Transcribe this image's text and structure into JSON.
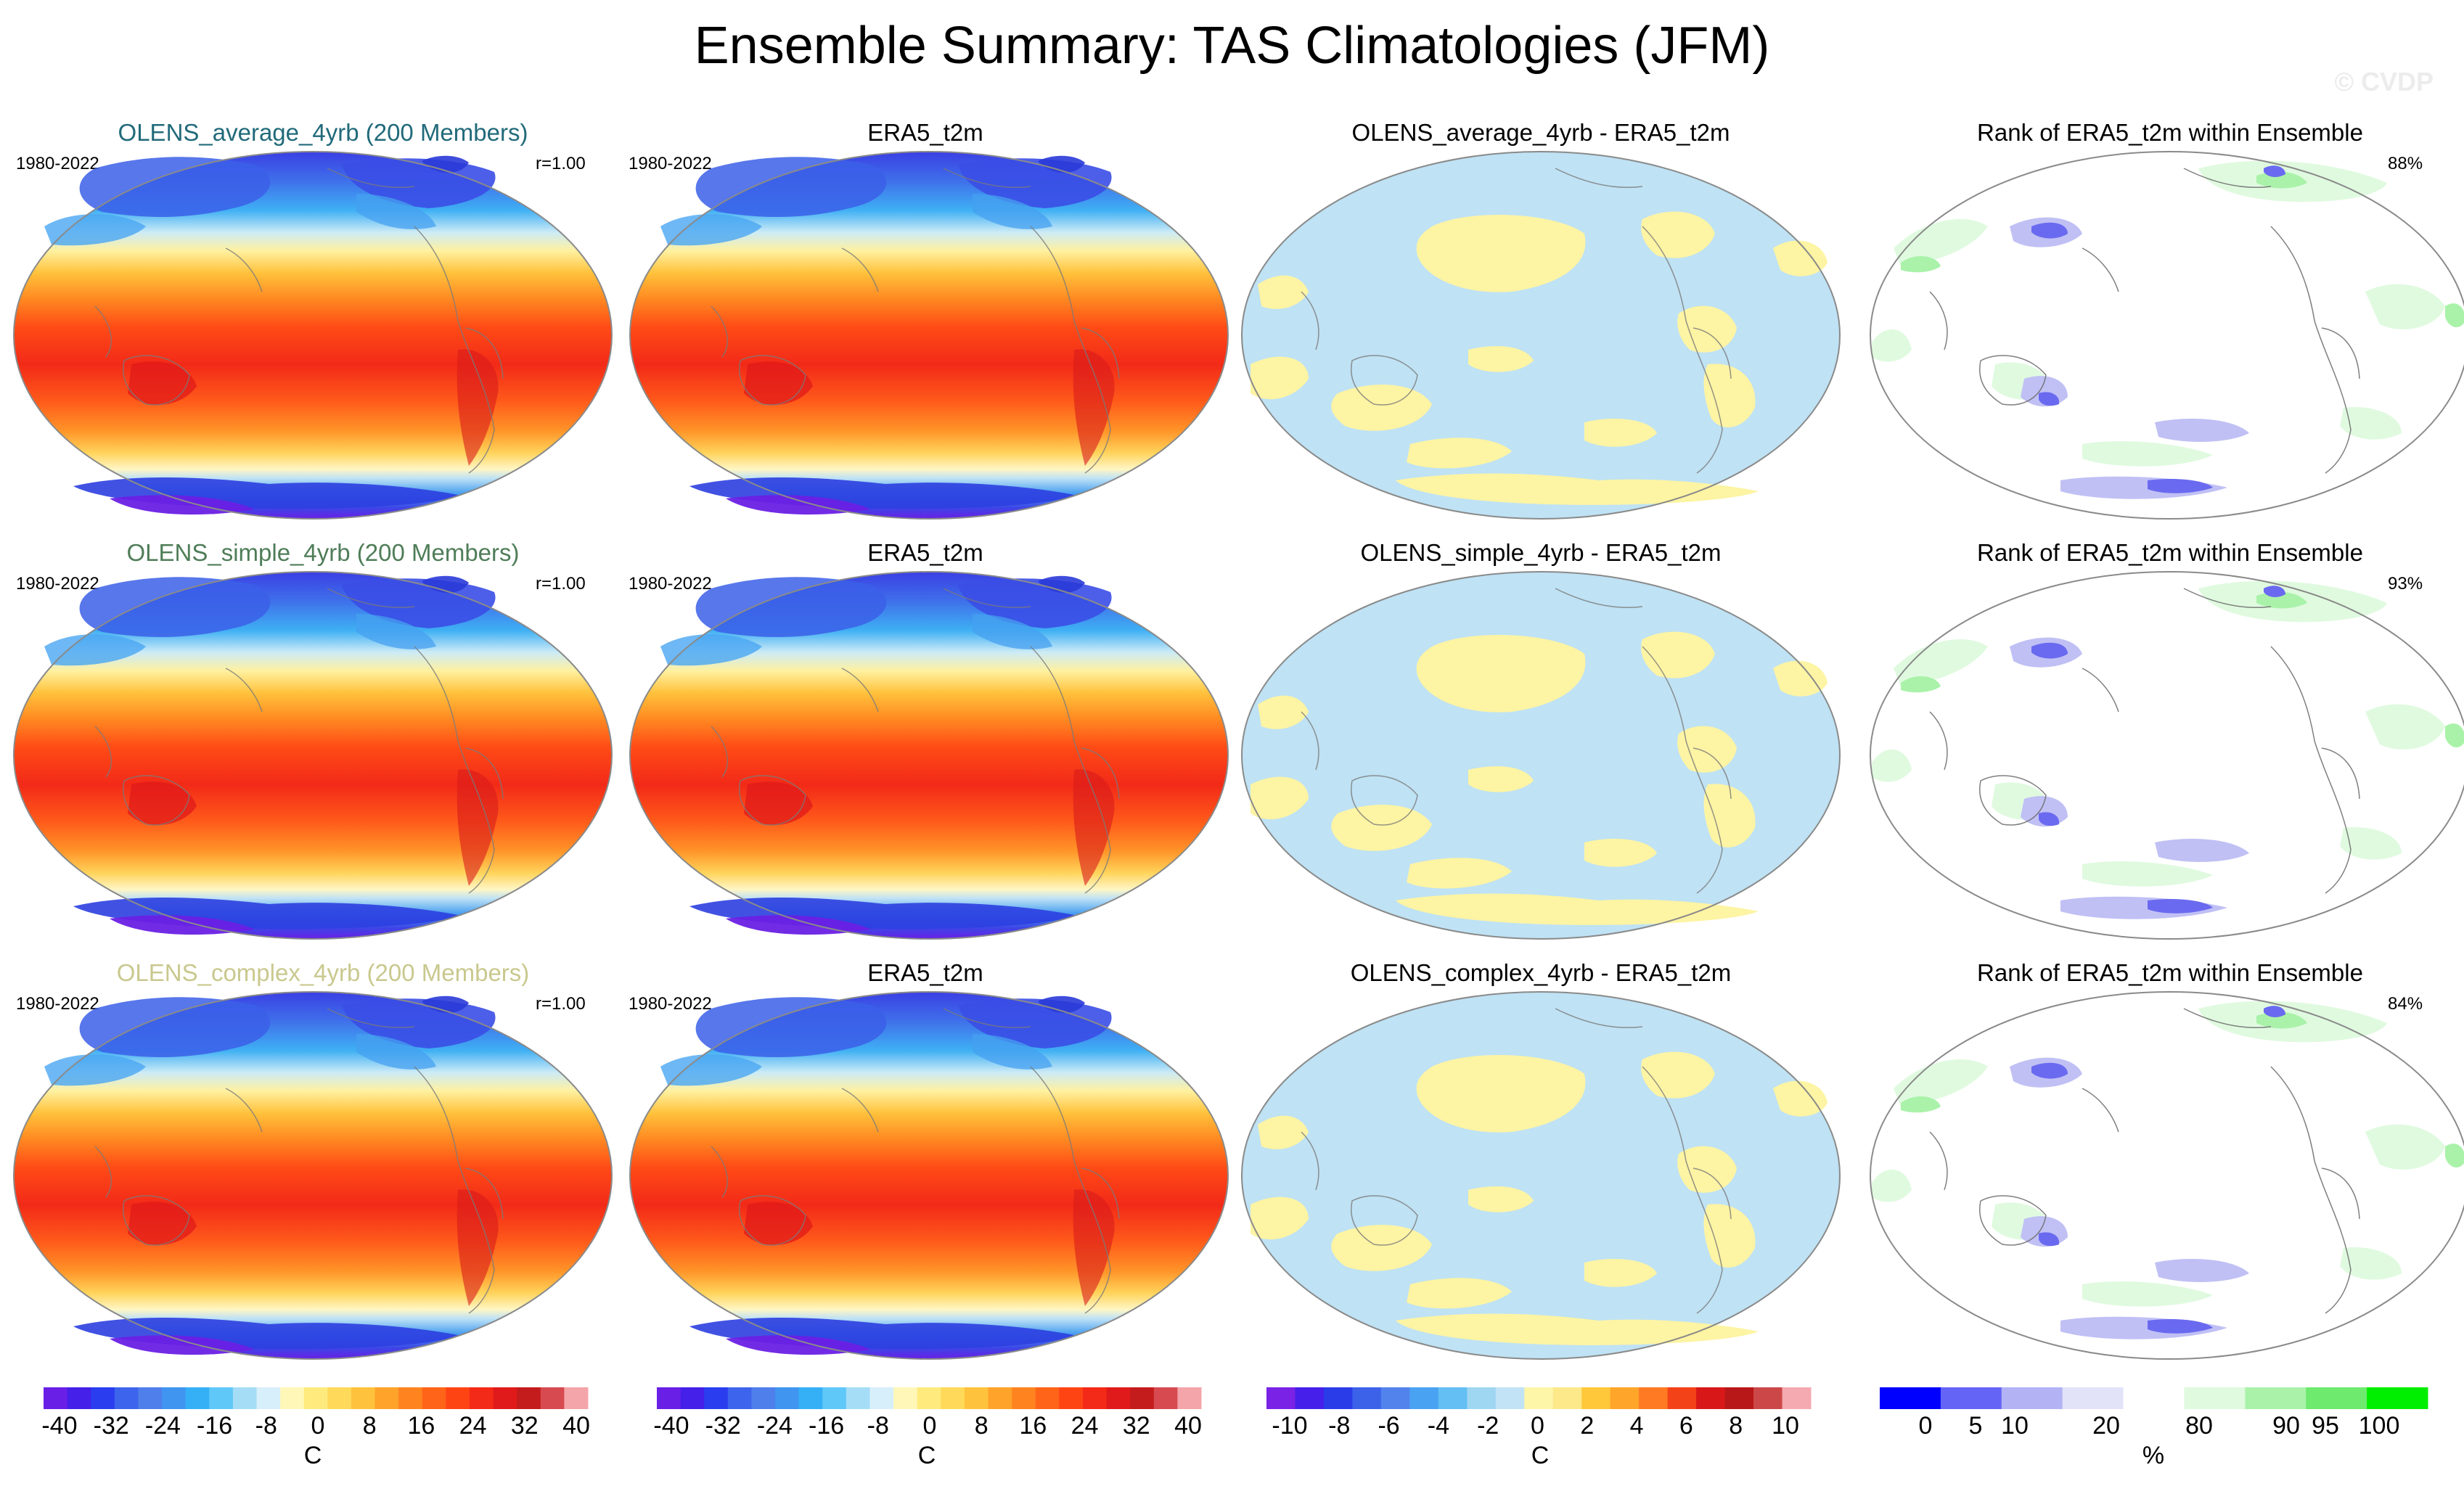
{
  "title": "Ensemble Summary: TAS Climatologies (JFM)",
  "watermark": "© CVDP",
  "colors": {
    "temp_scale": [
      "#6a1fe6",
      "#4420e8",
      "#2a3ef0",
      "#3d64ec",
      "#4f7fea",
      "#3f95f0",
      "#35b0f6",
      "#5fc8f8",
      "#a5dcf6",
      "#d7effa",
      "#fff7b8",
      "#ffeb7d",
      "#ffd95a",
      "#ffc23c",
      "#ffa32a",
      "#ff8420",
      "#ff6418",
      "#ff4414",
      "#f42a18",
      "#e01a1a",
      "#c41c1c",
      "#d64a50",
      "#f4a5aa"
    ],
    "diff_scale": [
      "#7a22e6",
      "#4620ea",
      "#2a3ce8",
      "#3d62ea",
      "#5283ec",
      "#4aa3f2",
      "#63bff4",
      "#9fd6f2",
      "#c2e3f5",
      "#fdf5a8",
      "#fde98a",
      "#ffc83a",
      "#ffa52a",
      "#ff7a22",
      "#f44218",
      "#d81818",
      "#b91818",
      "#cc4848",
      "#f5a9b0"
    ],
    "rank_scale": [
      "#0000ff",
      "#6464f7",
      "#b2b2f5",
      "#e2e2f9",
      "#ffffff",
      "#e0fae0",
      "#aaf2aa",
      "#6eea6e",
      "#00ee00"
    ],
    "title_average": "#216a7a",
    "title_simple": "#4f7d58",
    "title_complex": "#c9c88e",
    "ocean_diff": "#bfe2f4",
    "land_diff": "#fdf4a4"
  },
  "rows": [
    {
      "model_title": "OLENS_average_4yrb (200 Members)",
      "period_left": "1980-2022",
      "corr": "r=1.00",
      "obs_title": "ERA5_t2m",
      "obs_period": "1980-2022",
      "diff_title": "OLENS_average_4yrb - ERA5_t2m",
      "rank_title": "Rank of ERA5_t2m within Ensemble",
      "rank_pct": "88%"
    },
    {
      "model_title": "OLENS_simple_4yrb (200 Members)",
      "period_left": "1980-2022",
      "corr": "r=1.00",
      "obs_title": "ERA5_t2m",
      "obs_period": "1980-2022",
      "diff_title": "OLENS_simple_4yrb - ERA5_t2m",
      "rank_title": "Rank of ERA5_t2m within Ensemble",
      "rank_pct": "93%"
    },
    {
      "model_title": "OLENS_complex_4yrb (200 Members)",
      "period_left": "1980-2022",
      "corr": "r=1.00",
      "obs_title": "ERA5_t2m",
      "obs_period": "1980-2022",
      "diff_title": "OLENS_complex_4yrb - ERA5_t2m",
      "rank_title": "Rank of ERA5_t2m within Ensemble",
      "rank_pct": "84%"
    }
  ],
  "colorbars": {
    "temp_labels": [
      "-40",
      "-32",
      "-24",
      "-16",
      "-8",
      "0",
      "8",
      "16",
      "24",
      "32",
      "40"
    ],
    "temp_unit": "C",
    "diff_labels": [
      "-10",
      "-8",
      "-6",
      "-4",
      "-2",
      "0",
      "2",
      "4",
      "6",
      "8",
      "10"
    ],
    "diff_unit": "C",
    "rank_labels": [
      "0",
      "5",
      "10",
      "20",
      "80",
      "90",
      "95",
      "100"
    ],
    "rank_unit": "%"
  }
}
